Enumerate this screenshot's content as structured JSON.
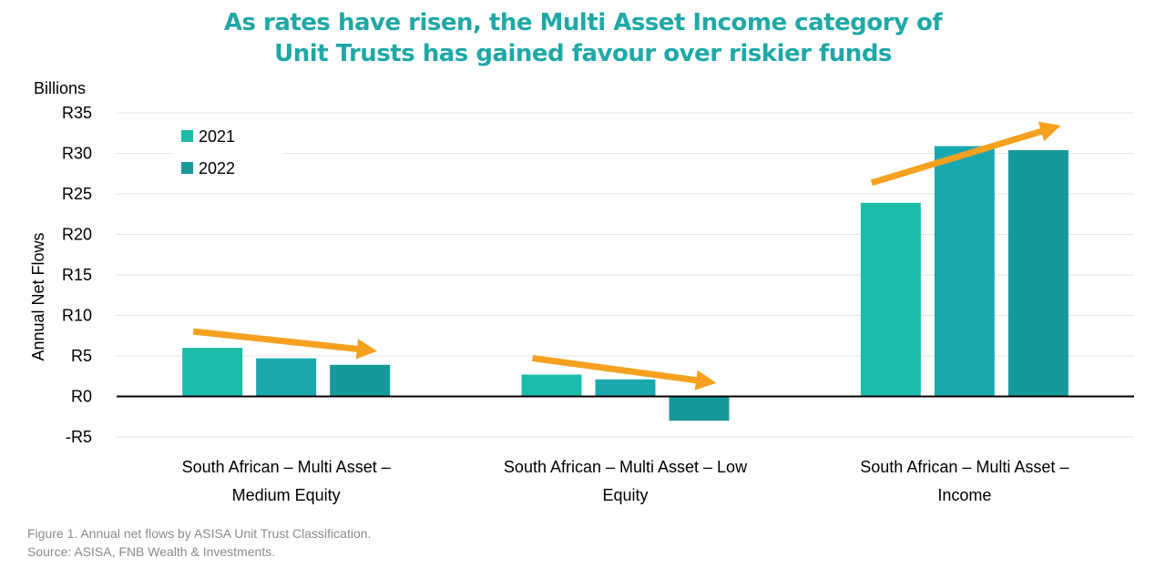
{
  "chart_data": {
    "type": "bar",
    "title": [
      "As rates have risen, the Multi Asset Income category of",
      "Unit Trusts has gained favour over riskier funds"
    ],
    "units_label": "Billions",
    "ylabel": "Annual Net Flows",
    "ylim": [
      -5,
      35
    ],
    "yticks": [
      {
        "value": 35,
        "label": "R35"
      },
      {
        "value": 30,
        "label": "R30"
      },
      {
        "value": 25,
        "label": "R25"
      },
      {
        "value": 20,
        "label": "R20"
      },
      {
        "value": 15,
        "label": "R15"
      },
      {
        "value": 10,
        "label": "R10"
      },
      {
        "value": 5,
        "label": "R5"
      },
      {
        "value": 0,
        "label": "R0"
      },
      {
        "value": -5,
        "label": "-R5"
      }
    ],
    "grid": true,
    "legend_position": "top-left",
    "categories": [
      [
        "South African  – Multi Asset –",
        "Medium Equity"
      ],
      [
        "South African – Multi Asset – Low",
        "Equity"
      ],
      [
        "South African  – Multi Asset –",
        "Income"
      ]
    ],
    "series": [
      {
        "name": "2021",
        "color": "#1cbcaa",
        "values": [
          6.0,
          2.7,
          23.9
        ]
      },
      {
        "name": "",
        "color": "#1aa8b0",
        "values": [
          4.7,
          2.1,
          30.9
        ]
      },
      {
        "name": "2022",
        "color": "#17999a",
        "values": [
          3.9,
          -3.0,
          30.4
        ]
      }
    ],
    "trend_arrows": {
      "color": "#f5a01f",
      "directions": [
        "down",
        "down",
        "up"
      ]
    }
  },
  "caption": [
    "Figure 1. Annual net flows by ASISA Unit Trust Classification.",
    "Source: ASISA, FNB Wealth & Investments."
  ]
}
